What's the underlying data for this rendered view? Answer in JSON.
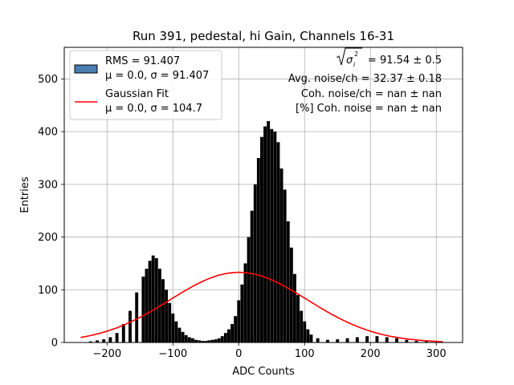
{
  "chart_data": {
    "type": "bar",
    "title": "Run 391, pedestal, hi Gain, Channels 16-31",
    "xlabel": "ADC Counts",
    "ylabel": "Entries",
    "xlim": [
      -265,
      340
    ],
    "ylim": [
      0,
      560
    ],
    "xticks": [
      -200,
      -100,
      0,
      100,
      200,
      300
    ],
    "xtick_labels": [
      "−200",
      "−100",
      "0",
      "100",
      "200",
      "300"
    ],
    "yticks": [
      0,
      100,
      200,
      300,
      400,
      500
    ],
    "ytick_labels": [
      "0",
      "100",
      "200",
      "300",
      "400",
      "500"
    ],
    "grid": true,
    "legend_position": "upper-left",
    "histogram": {
      "name": "RMS = 91.407",
      "stats_label": "μ = 0.0, σ = 91.407",
      "color": "#000000",
      "legend_patch_color": "#4a7eb0",
      "bins": [
        {
          "x": -235,
          "y": 0
        },
        {
          "x": -225,
          "y": 2
        },
        {
          "x": -215,
          "y": 4
        },
        {
          "x": -205,
          "y": 6
        },
        {
          "x": -195,
          "y": 10
        },
        {
          "x": -185,
          "y": 18
        },
        {
          "x": -175,
          "y": 35
        },
        {
          "x": -165,
          "y": 60
        },
        {
          "x": -155,
          "y": 95
        },
        {
          "x": -145,
          "y": 125
        },
        {
          "x": -140,
          "y": 140
        },
        {
          "x": -135,
          "y": 155
        },
        {
          "x": -130,
          "y": 165
        },
        {
          "x": -125,
          "y": 160
        },
        {
          "x": -120,
          "y": 140
        },
        {
          "x": -115,
          "y": 120
        },
        {
          "x": -110,
          "y": 100
        },
        {
          "x": -105,
          "y": 75
        },
        {
          "x": -100,
          "y": 55
        },
        {
          "x": -95,
          "y": 40
        },
        {
          "x": -90,
          "y": 28
        },
        {
          "x": -85,
          "y": 20
        },
        {
          "x": -80,
          "y": 14
        },
        {
          "x": -75,
          "y": 10
        },
        {
          "x": -70,
          "y": 8
        },
        {
          "x": -65,
          "y": 5
        },
        {
          "x": -60,
          "y": 4
        },
        {
          "x": -55,
          "y": 3
        },
        {
          "x": -50,
          "y": 3
        },
        {
          "x": -45,
          "y": 4
        },
        {
          "x": -40,
          "y": 5
        },
        {
          "x": -35,
          "y": 6
        },
        {
          "x": -30,
          "y": 8
        },
        {
          "x": -25,
          "y": 12
        },
        {
          "x": -20,
          "y": 18
        },
        {
          "x": -15,
          "y": 25
        },
        {
          "x": -10,
          "y": 35
        },
        {
          "x": -5,
          "y": 50
        },
        {
          "x": 0,
          "y": 80
        },
        {
          "x": 5,
          "y": 110
        },
        {
          "x": 10,
          "y": 150
        },
        {
          "x": 15,
          "y": 200
        },
        {
          "x": 20,
          "y": 250
        },
        {
          "x": 25,
          "y": 300
        },
        {
          "x": 30,
          "y": 350
        },
        {
          "x": 35,
          "y": 390
        },
        {
          "x": 40,
          "y": 410
        },
        {
          "x": 45,
          "y": 420
        },
        {
          "x": 50,
          "y": 405
        },
        {
          "x": 55,
          "y": 400
        },
        {
          "x": 60,
          "y": 380
        },
        {
          "x": 65,
          "y": 330
        },
        {
          "x": 70,
          "y": 290
        },
        {
          "x": 75,
          "y": 230
        },
        {
          "x": 80,
          "y": 180
        },
        {
          "x": 85,
          "y": 130
        },
        {
          "x": 90,
          "y": 90
        },
        {
          "x": 95,
          "y": 60
        },
        {
          "x": 100,
          "y": 40
        },
        {
          "x": 105,
          "y": 25
        },
        {
          "x": 110,
          "y": 15
        },
        {
          "x": 120,
          "y": 8
        },
        {
          "x": 135,
          "y": 5
        },
        {
          "x": 150,
          "y": 6
        },
        {
          "x": 165,
          "y": 8
        },
        {
          "x": 180,
          "y": 10
        },
        {
          "x": 195,
          "y": 12
        },
        {
          "x": 210,
          "y": 12
        },
        {
          "x": 225,
          "y": 10
        },
        {
          "x": 240,
          "y": 8
        },
        {
          "x": 255,
          "y": 5
        },
        {
          "x": 270,
          "y": 3
        },
        {
          "x": 285,
          "y": 2
        },
        {
          "x": 300,
          "y": 1
        }
      ]
    },
    "fit": {
      "name": "Gaussian Fit",
      "stats_label": "μ = 0.0, σ = 104.7",
      "color": "#ff0000",
      "mu": 0.0,
      "sigma": 104.7,
      "amplitude": 133,
      "x_range": [
        -240,
        310
      ]
    },
    "annotations": {
      "line1_value": " = 91.54 ± 0.5",
      "line2": "Avg. noise/ch = 32.37 ± 0.18",
      "line3": "Coh. noise/ch = nan ± nan",
      "line4": "[%] Coh. noise = nan ± nan"
    }
  }
}
